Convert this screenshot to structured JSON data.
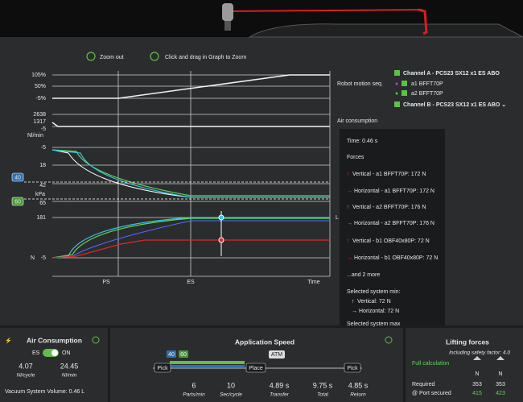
{
  "toolbar": {
    "zoom_out": "Zoom out",
    "drag_hint": "Click and drag in Graph to Zoom"
  },
  "graph": {
    "y_labels": [
      "105%",
      "50%",
      "-5%",
      "2638",
      "1317",
      "-5",
      "Nl/min",
      "-5",
      "18",
      "42",
      "kPa",
      "65",
      "181",
      "N",
      "-5"
    ],
    "badges": [
      "40",
      "60"
    ],
    "x_labels": [
      "PS",
      "ES",
      "Time"
    ]
  },
  "legend": {
    "robot_motion": "Robot motion seq.",
    "channel_a": "Channel A - PCS23 SX12 x1 ES ABO",
    "a1": "a1 BFFT70P",
    "a2": "a2 BFFT70P",
    "channel_b": "Channel B - PCS23 SX12 x1 ES ABO ⌄",
    "air_consumption": "Air consumption",
    "fragment": "L"
  },
  "tooltip": {
    "time": "Time: 0.46 s",
    "forces_heading": "Forces",
    "forces": [
      "Vertical - a1 BFFT70P: 172 N",
      "Horizontal - a1 BFFT70P: 172 N",
      "Vertical - a2 BFFT70P: 176 N",
      "Horizontal - a2 BFFT70P: 176 N",
      "Vertical - b1 OBF40x80P: 72 N",
      "Horizontal - b1 OBF40x80P: 72 N"
    ],
    "more": "...and 2 more",
    "min_heading": "Selected system min:",
    "min_values": [
      "Vertical: 72 N",
      "Horizontal: 72 N"
    ],
    "max_heading": "Selected system max"
  },
  "air_consumption": {
    "title": "Air Consumption",
    "toggle_left": "ES",
    "toggle_right": "ON",
    "per_cycle": "4.07",
    "per_cycle_unit": "Nl/cycle",
    "per_min": "24.45",
    "per_min_unit": "Nl/min",
    "volume": "Vacuum System Volume: 0.46 L"
  },
  "application_speed": {
    "title": "Application Speed",
    "badges": [
      "40",
      "60"
    ],
    "steps": [
      "Pick",
      "Place",
      "ATM",
      "Pick"
    ],
    "parts_per_min": "6",
    "parts_per_min_unit": "Parts/min",
    "sec_per_cycle": "10",
    "sec_per_cycle_unit": "Sec/cycle",
    "transfer": "4.89 s",
    "transfer_unit": "Transfer",
    "total": "9.75 s",
    "total_unit": "Total",
    "return": "4.85 s",
    "return_unit": "Return"
  },
  "lifting_forces": {
    "title": "Lifting forces",
    "subtitle": "Including safety factor: 4.0",
    "link": "Full calculation",
    "units": [
      "N",
      "N"
    ],
    "rows": [
      {
        "label": "Required",
        "values": [
          "353",
          "353"
        ]
      },
      {
        "label": "@ Port secured",
        "values": [
          "415",
          "423"
        ]
      }
    ]
  }
}
